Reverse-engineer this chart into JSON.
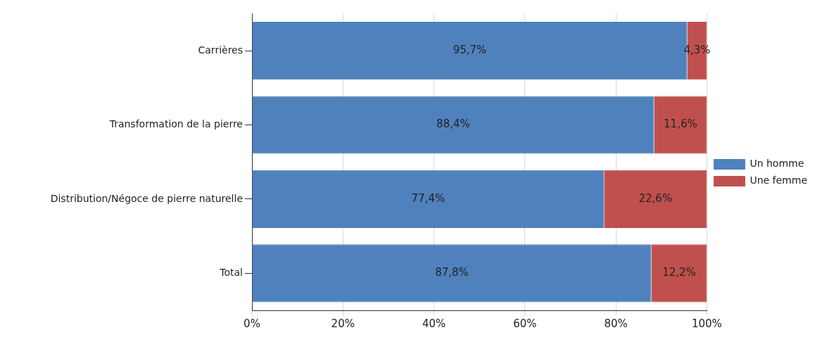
{
  "chart_data": {
    "type": "bar",
    "orientation": "horizontal",
    "stacked": true,
    "categories": [
      "Carrières",
      "Transformation de la pierre",
      "Distribution/Négoce de pierre naturelle",
      "Total"
    ],
    "series": [
      {
        "name": "Un homme",
        "color": "#4f81bd",
        "values": [
          95.7,
          88.4,
          77.4,
          87.8
        ],
        "value_labels": [
          "95,7%",
          "88,4%",
          "77,4%",
          "87,8%"
        ]
      },
      {
        "name": "Une femme",
        "color": "#c0504d",
        "values": [
          4.3,
          11.6,
          22.6,
          12.2
        ],
        "value_labels": [
          "4,3%",
          "11,6%",
          "22,6%",
          "12,2%"
        ]
      }
    ],
    "xlim": [
      0,
      100
    ],
    "xticks": [
      {
        "value": 0,
        "label": "0%"
      },
      {
        "value": 20,
        "label": "20%"
      },
      {
        "value": 40,
        "label": "40%"
      },
      {
        "value": 60,
        "label": "60%"
      },
      {
        "value": 80,
        "label": "80%"
      },
      {
        "value": 100,
        "label": "100%"
      }
    ],
    "grid": "x",
    "legend": "right"
  }
}
